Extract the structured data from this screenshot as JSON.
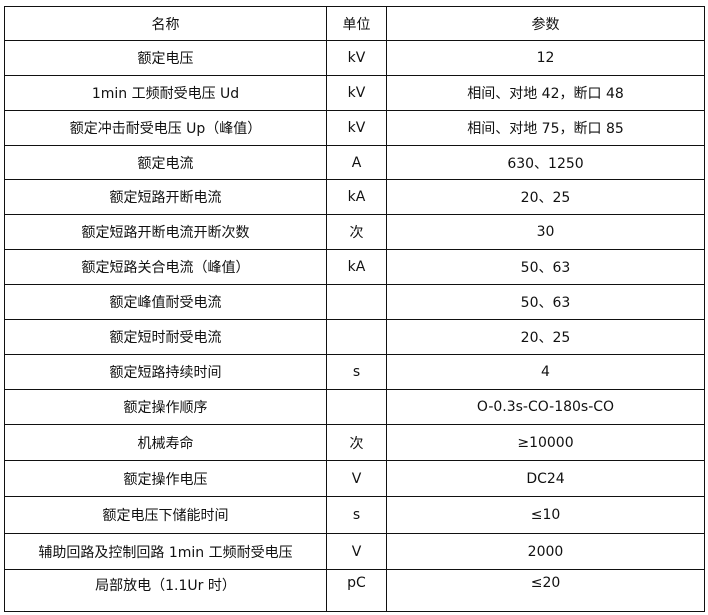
{
  "header": {
    "name": "名称",
    "unit": "单位",
    "value": "参数"
  },
  "rows": [
    {
      "name": "额定电压",
      "unit": "kV",
      "value": "12"
    },
    {
      "name": "1min 工频耐受电压 Ud",
      "unit": "kV",
      "value": "相间、对地 42，断口 48"
    },
    {
      "name": "额定冲击耐受电压 Up（峰值）",
      "unit": "kV",
      "value": "相间、对地 75，断口 85"
    },
    {
      "name": "额定电流",
      "unit": "A",
      "value": "630、1250"
    },
    {
      "name": "额定短路开断电流",
      "unit": "kA",
      "value": "20、25"
    },
    {
      "name": "额定短路开断电流开断次数",
      "unit": "次",
      "value": "30"
    },
    {
      "name": "额定短路关合电流（峰值）",
      "unit": "kA",
      "value": "50、63"
    },
    {
      "name": "额定峰值耐受电流",
      "unit": "",
      "value": "50、63"
    },
    {
      "name": "额定短时耐受电流",
      "unit": "",
      "value": "20、25"
    },
    {
      "name": "额定短路持续时间",
      "unit": "s",
      "value": "4"
    },
    {
      "name": "额定操作顺序",
      "unit": "",
      "value": "O-0.3s-CO-180s-CO"
    },
    {
      "name": "机械寿命",
      "unit": "次",
      "value": "≥10000"
    },
    {
      "name": "额定操作电压",
      "unit": "V",
      "value": "DC24"
    },
    {
      "name": "额定电压下储能时间",
      "unit": "s",
      "value": "≤10"
    },
    {
      "name": "辅助回路及控制回路 1min 工频耐受电压",
      "unit": "V",
      "value": "2000"
    },
    {
      "name": "局部放电（1.1Ur 时）",
      "unit": "pC",
      "value": "≤20"
    }
  ]
}
